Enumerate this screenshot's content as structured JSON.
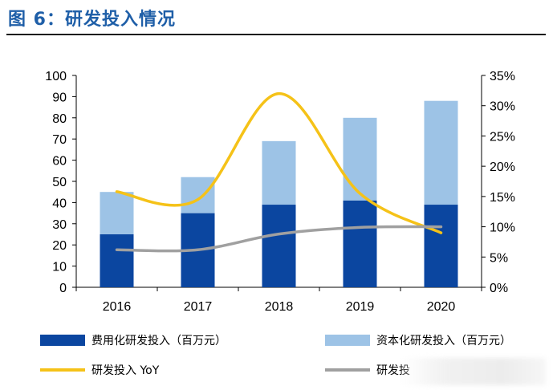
{
  "title": "图 6：研发投入情况",
  "chart_data": {
    "type": "bar",
    "categories": [
      "2016",
      "2017",
      "2018",
      "2019",
      "2020"
    ],
    "series": [
      {
        "name": "费用化研发投入（百万元）",
        "kind": "stacked-bar",
        "axis": "left",
        "color": "#0b46a0",
        "values": [
          25,
          35,
          39,
          41,
          39
        ]
      },
      {
        "name": "资本化研发投入（百万元）",
        "kind": "stacked-bar",
        "axis": "left",
        "color": "#9dc3e6",
        "values": [
          20,
          17,
          30,
          39,
          49
        ]
      },
      {
        "name": "研发投入 YoY",
        "kind": "line",
        "axis": "right",
        "color": "#f5c218",
        "values": [
          0.158,
          0.145,
          0.32,
          0.155,
          0.09
        ]
      },
      {
        "name": "研发投",
        "kind": "line",
        "axis": "right",
        "color": "#a0a0a0",
        "values": [
          0.062,
          0.062,
          0.088,
          0.099,
          0.1
        ]
      }
    ],
    "y_left": {
      "min": 0,
      "max": 100,
      "step": 10,
      "ticks": [
        "0",
        "10",
        "20",
        "30",
        "40",
        "50",
        "60",
        "70",
        "80",
        "90",
        "100"
      ]
    },
    "y_right": {
      "min": 0,
      "max": 0.35,
      "step": 0.05,
      "ticks": [
        "0%",
        "5%",
        "10%",
        "15%",
        "20%",
        "25%",
        "30%",
        "35%"
      ]
    },
    "grid": false,
    "legend": "bottom"
  }
}
